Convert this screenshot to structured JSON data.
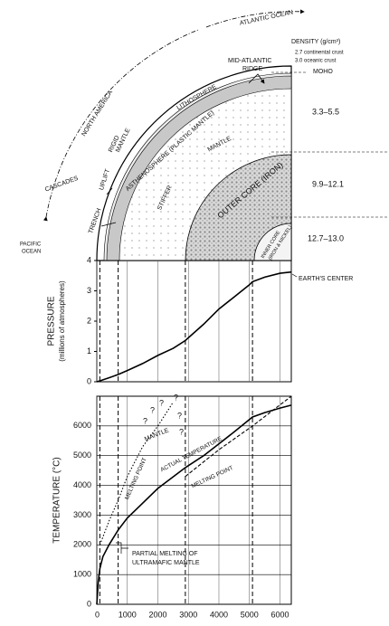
{
  "diagram": {
    "atlantic": "ATLANTIC OCEAN",
    "north_america": "NORTH AMERICA",
    "pacific": [
      "PACIFIC",
      "OCEAN"
    ],
    "density_title": "DENSITY (g/cm³)",
    "continental": "2.7 continental crust",
    "oceanic": "3.0 oceanic crust",
    "moho": "MOHO",
    "ridge": [
      "MID-ATLANTIC",
      "RIDGE"
    ],
    "lithosphere": "LITHOSPHERE",
    "rigid": [
      "RIGID",
      "MANTLE"
    ],
    "uplift": "UPLIFT",
    "asthenosphere": "ASTHENOSPHERE (PLASTIC MANTLE)",
    "mantle": "MANTLE",
    "stiffer": "STIFFER",
    "outer_core": "OUTER CORE (IRON)",
    "inner_core": [
      "INNER CORE",
      "(IRON & NICKEL)"
    ],
    "cascades": "CASCADES",
    "trench": "TRENCH",
    "densities": [
      "3.3–5.5",
      "9.9–12.1",
      "12.7–13.0"
    ]
  },
  "chart_data": [
    {
      "type": "line",
      "ylabel": [
        "PRESSURE",
        "(millions of atmospheres)"
      ],
      "xlim": [
        0,
        6371
      ],
      "ylim": [
        0,
        4
      ],
      "yticks": [
        0,
        1,
        2,
        3,
        4
      ],
      "grid": "x",
      "boundaries": [
        100,
        700,
        2900,
        5100
      ],
      "x": [
        0,
        100,
        400,
        700,
        1000,
        1500,
        2000,
        2500,
        2900,
        3500,
        4000,
        4500,
        5000,
        5100,
        5500,
        6000,
        6371
      ],
      "values": [
        0,
        0.03,
        0.13,
        0.24,
        0.37,
        0.6,
        0.87,
        1.1,
        1.36,
        1.9,
        2.4,
        2.8,
        3.2,
        3.3,
        3.45,
        3.58,
        3.62
      ],
      "color": "#000000",
      "annotations": [
        "EARTH'S CENTER"
      ]
    },
    {
      "type": "line",
      "ylabel": "TEMPERATURE (°C)",
      "xlim": [
        0,
        6371
      ],
      "ylim": [
        0,
        7000
      ],
      "yticks": [
        0,
        1000,
        2000,
        3000,
        4000,
        5000,
        6000
      ],
      "xticks": [
        0,
        1000,
        2000,
        3000,
        4000,
        5000,
        6000
      ],
      "grid": "both",
      "boundaries": [
        100,
        700,
        2900,
        5100
      ],
      "series": [
        {
          "name": "ACTUAL TEMPERATURE",
          "color": "#000000",
          "style": "solid",
          "x": [
            0,
            50,
            100,
            200,
            400,
            700,
            1000,
            1500,
            2000,
            2900,
            3500,
            4000,
            4500,
            5100,
            5500,
            6000,
            6371
          ],
          "values": [
            0,
            800,
            1200,
            1600,
            2000,
            2500,
            2900,
            3400,
            3900,
            4600,
            5000,
            5400,
            5800,
            6300,
            6450,
            6600,
            6700
          ]
        },
        {
          "name": "MELTING POINT",
          "color": "#000000",
          "style": "dotted",
          "x": [
            100,
            400,
            700,
            1000,
            1500,
            2000,
            2500
          ],
          "values": [
            2000,
            2800,
            3500,
            4300,
            5300,
            6000,
            6800
          ]
        },
        {
          "name": "MELTING POINT",
          "color": "#000000",
          "style": "dashed",
          "x": [
            2900,
            4000,
            5100,
            6371
          ],
          "values": [
            4300,
            5200,
            6000,
            7000
          ]
        }
      ],
      "annotations": [
        "MANTLE",
        "PARTIAL MELTING OF",
        "ULTRAMAFIC MANTLE",
        "?",
        "?",
        "?",
        "?",
        "?",
        "?"
      ]
    }
  ]
}
